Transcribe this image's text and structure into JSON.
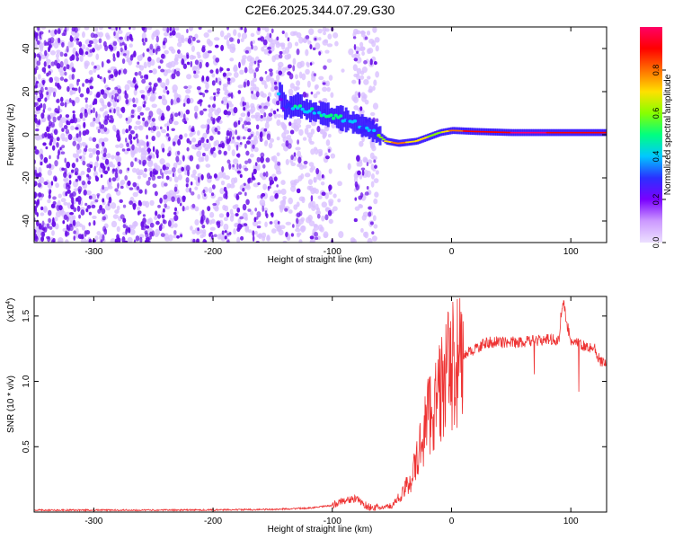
{
  "title": "C2E6.2025.344.07.29.G30",
  "colors": {
    "snr_line": "#ee3333",
    "spectro_speckle": "#6a10e8",
    "spectro_light": "#d9c0ff",
    "colormap": [
      "#ece0ff",
      "#cc99ff",
      "#7a00ff",
      "#2a30ff",
      "#00c8ff",
      "#00ff80",
      "#88ff00",
      "#ffe000",
      "#ff7000",
      "#ff0000",
      "#ff0066"
    ]
  },
  "chart_data": [
    {
      "type": "heatmap",
      "xlabel": "Height of straight line (km)",
      "ylabel": "Frequency (Hz)",
      "xlim": [
        -350,
        130
      ],
      "ylim": [
        -50,
        50
      ],
      "x_ticks": [
        -300,
        -200,
        -100,
        0,
        100
      ],
      "x_tick_labels": [
        "-300",
        "-200",
        "-100",
        "0",
        "100"
      ],
      "y_ticks": [
        -40,
        -20,
        0,
        20,
        40
      ],
      "y_tick_labels": [
        "-40",
        "-20",
        "0",
        "20",
        "40"
      ],
      "colorbar": {
        "label": "Normalized spectral amplitude",
        "range": [
          0,
          1
        ],
        "ticks": [
          0,
          0.2,
          0.4,
          0.6,
          0.8
        ],
        "tick_labels": [
          "0.0",
          "0.2",
          "0.4",
          "0.6",
          "0.8"
        ]
      },
      "noise_band": {
        "x_range": [
          -350,
          -62
        ],
        "freq_range": [
          -50,
          50
        ],
        "amplitude": 0.12
      },
      "signal_track": [
        {
          "x": -145,
          "freq": 20,
          "amp": 0.3
        },
        {
          "x": -140,
          "freq": 12,
          "amp": 0.35
        },
        {
          "x": -130,
          "freq": 14,
          "amp": 0.4
        },
        {
          "x": -120,
          "freq": 11,
          "amp": 0.45
        },
        {
          "x": -110,
          "freq": 10,
          "amp": 0.42
        },
        {
          "x": -95,
          "freq": 8,
          "amp": 0.4
        },
        {
          "x": -85,
          "freq": 6,
          "amp": 0.38
        },
        {
          "x": -70,
          "freq": 3,
          "amp": 0.35
        },
        {
          "x": -62,
          "freq": 0,
          "amp": 0.45
        },
        {
          "x": -55,
          "freq": -3,
          "amp": 0.7
        },
        {
          "x": -45,
          "freq": -4,
          "amp": 0.8
        },
        {
          "x": -30,
          "freq": -3,
          "amp": 0.7
        },
        {
          "x": -20,
          "freq": -1,
          "amp": 0.65
        },
        {
          "x": -10,
          "freq": 1,
          "amp": 0.6
        },
        {
          "x": 0,
          "freq": 2,
          "amp": 0.8
        },
        {
          "x": 20,
          "freq": 1.5,
          "amp": 0.9
        },
        {
          "x": 50,
          "freq": 1,
          "amp": 0.95
        },
        {
          "x": 80,
          "freq": 1,
          "amp": 0.95
        },
        {
          "x": 100,
          "freq": 1,
          "amp": 0.9
        },
        {
          "x": 130,
          "freq": 1,
          "amp": 0.9
        }
      ]
    },
    {
      "type": "line",
      "xlabel": "Height of straight line (km)",
      "ylabel": "SNR (10 * v/v)",
      "scale_label": "(x10",
      "scale_exp": "4",
      "scale_close": ")",
      "xlim": [
        -350,
        130
      ],
      "ylim": [
        0,
        16500
      ],
      "x_ticks": [
        -300,
        -200,
        -100,
        0,
        100
      ],
      "x_tick_labels": [
        "-300",
        "-200",
        "-100",
        "0",
        "100"
      ],
      "y_ticks": [
        5000,
        10000,
        15000
      ],
      "y_tick_labels": [
        "0.5",
        "1.0",
        "1.5"
      ],
      "series": [
        {
          "x": [
            -350,
            -300,
            -250,
            -200,
            -150,
            -120,
            -100,
            -90,
            -80,
            -70,
            -60,
            -50,
            -40,
            -30,
            -20,
            -15,
            -10,
            -5,
            0,
            10,
            20,
            30,
            40,
            60,
            80,
            90,
            93,
            100,
            110,
            120,
            125,
            130
          ],
          "y": [
            150,
            150,
            150,
            160,
            200,
            300,
            500,
            900,
            1000,
            400,
            300,
            500,
            1500,
            3500,
            7500,
            8000,
            9000,
            10500,
            11000,
            12000,
            12500,
            13000,
            13000,
            13000,
            13200,
            13200,
            16300,
            13000,
            12800,
            12500,
            11500,
            11200
          ]
        }
      ]
    }
  ]
}
